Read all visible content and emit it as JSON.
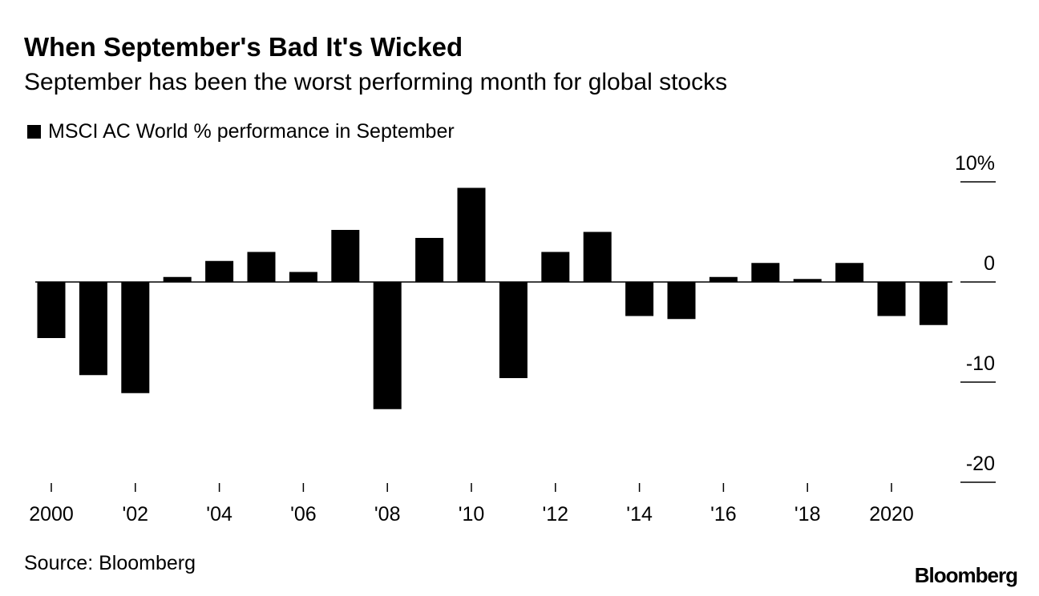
{
  "header": {
    "title": "When September's Bad It's Wicked",
    "subtitle": "September has been the worst performing month for global stocks"
  },
  "footer": {
    "source": "Source: Bloomberg",
    "logo": "Bloomberg"
  },
  "colors": {
    "bar": "#000000",
    "axis": "#000000",
    "background": "#ffffff"
  },
  "chart_data": {
    "type": "bar",
    "legend": [
      "MSCI AC World % performance in September"
    ],
    "legend_position": "top-left",
    "x": [
      2000,
      2001,
      2002,
      2003,
      2004,
      2005,
      2006,
      2007,
      2008,
      2009,
      2010,
      2011,
      2012,
      2013,
      2014,
      2015,
      2016,
      2017,
      2018,
      2019,
      2020,
      2021
    ],
    "values": [
      -5.6,
      -9.3,
      -11.1,
      0.5,
      2.1,
      3.0,
      1.0,
      5.2,
      -12.7,
      4.4,
      9.4,
      -9.6,
      3.0,
      5.0,
      -3.4,
      -3.7,
      0.5,
      1.9,
      0.3,
      1.9,
      -3.4,
      -4.3
    ],
    "x_tick_labels": [
      {
        "x": 2000,
        "label": "2000"
      },
      {
        "x": 2002,
        "label": "'02"
      },
      {
        "x": 2004,
        "label": "'04"
      },
      {
        "x": 2006,
        "label": "'06"
      },
      {
        "x": 2008,
        "label": "'08"
      },
      {
        "x": 2010,
        "label": "'10"
      },
      {
        "x": 2012,
        "label": "'12"
      },
      {
        "x": 2014,
        "label": "'14"
      },
      {
        "x": 2016,
        "label": "'16"
      },
      {
        "x": 2018,
        "label": "'18"
      },
      {
        "x": 2020,
        "label": "2020"
      }
    ],
    "y_ticks": [
      {
        "value": 10,
        "label": "10%"
      },
      {
        "value": 0,
        "label": "0"
      },
      {
        "value": -10,
        "label": "-10"
      },
      {
        "value": -20,
        "label": "-20"
      }
    ],
    "ylim": [
      -20,
      10
    ],
    "y_axis_side": "right",
    "grid": false
  }
}
